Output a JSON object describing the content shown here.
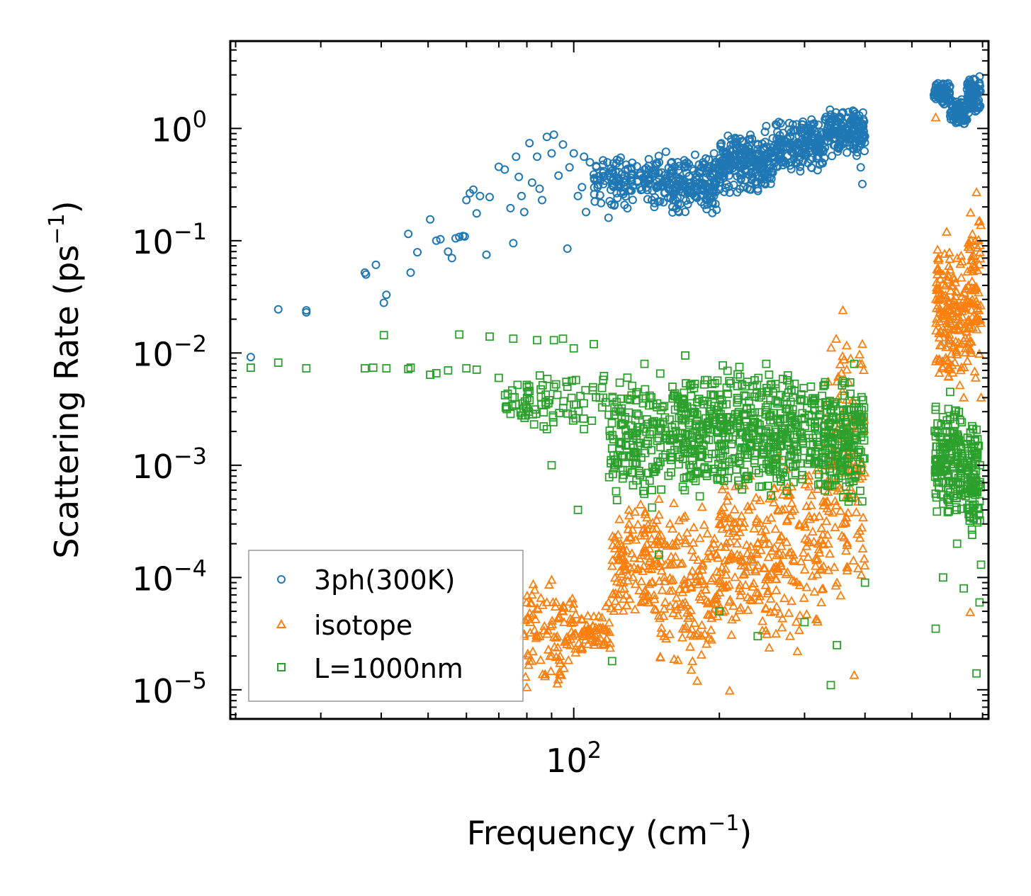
{
  "chart_data": {
    "type": "scatter",
    "xlabel": "Frequency (cm",
    "xlabel_sup": "−1",
    "xlabel_end": ")",
    "ylabel": "Scattering Rate (ps",
    "ylabel_sup": "−1",
    "ylabel_end": ")",
    "xscale": "log",
    "yscale": "log",
    "xlim": [
      19.5,
      720
    ],
    "ylim": [
      5.5e-06,
      6
    ],
    "x_ticks": [
      {
        "value": 100,
        "base": "10",
        "exp": "2"
      }
    ],
    "y_ticks": [
      {
        "value": 1,
        "base": "10",
        "exp": "0"
      },
      {
        "value": 0.1,
        "base": "10",
        "exp": "−1"
      },
      {
        "value": 0.01,
        "base": "10",
        "exp": "−2"
      },
      {
        "value": 0.001,
        "base": "10",
        "exp": "−3"
      },
      {
        "value": 0.0001,
        "base": "10",
        "exp": "−4"
      },
      {
        "value": 1e-05,
        "base": "10",
        "exp": "−5"
      }
    ],
    "legend_position": "lower-left",
    "series": [
      {
        "name": "3ph(300K)",
        "marker": "circle",
        "color": "#1f77b4",
        "points": [
          [
            21.5,
            0.0092
          ],
          [
            24.5,
            0.0245
          ],
          [
            28.0,
            0.024
          ],
          [
            28.0,
            0.023
          ],
          [
            37.0,
            0.052
          ],
          [
            37.2,
            0.05
          ],
          [
            39.0,
            0.061
          ],
          [
            40.5,
            0.028
          ],
          [
            41.0,
            0.033
          ],
          [
            45.5,
            0.115
          ],
          [
            46.0,
            0.052
          ],
          [
            47.5,
            0.079
          ],
          [
            50.5,
            0.155
          ],
          [
            52.0,
            0.1
          ],
          [
            53.0,
            0.103
          ],
          [
            55.0,
            0.08
          ],
          [
            56.0,
            0.07
          ],
          [
            57.0,
            0.105
          ],
          [
            58.0,
            0.108
          ],
          [
            59.0,
            0.11
          ],
          [
            59.5,
            0.109
          ],
          [
            60.0,
            0.23
          ],
          [
            61.0,
            0.265
          ],
          [
            62.0,
            0.285
          ],
          [
            63.0,
            0.175
          ],
          [
            64.0,
            0.25
          ],
          [
            66.0,
            0.075
          ],
          [
            67.0,
            0.245
          ],
          [
            70.0,
            0.455
          ],
          [
            72.0,
            0.43
          ],
          [
            74.0,
            0.195
          ],
          [
            75.0,
            0.095
          ],
          [
            76.0,
            0.56
          ],
          [
            77.0,
            0.37
          ],
          [
            78.0,
            0.25
          ],
          [
            79.0,
            0.18
          ],
          [
            81.0,
            0.74
          ],
          [
            82.0,
            0.33
          ],
          [
            84.0,
            0.56
          ],
          [
            85.0,
            0.29
          ],
          [
            86.0,
            0.23
          ],
          [
            88.0,
            0.84
          ],
          [
            90.0,
            0.6
          ],
          [
            91.0,
            0.88
          ],
          [
            93.0,
            0.38
          ],
          [
            95.0,
            0.72
          ],
          [
            97.0,
            0.085
          ],
          [
            98.0,
            0.45
          ],
          [
            100.0,
            0.6
          ],
          [
            102.0,
            0.25
          ],
          [
            104.0,
            0.3
          ],
          [
            105.0,
            0.56
          ],
          [
            106.0,
            0.18
          ],
          [
            108.0,
            0.5
          ],
          [
            110.0,
            0.39
          ],
          [
            112.0,
            0.3
          ],
          [
            115.0,
            0.52
          ],
          [
            118.0,
            0.16
          ],
          [
            120.0,
            0.42
          ],
          [
            125.0,
            0.55
          ],
          [
            130.0,
            0.28
          ],
          [
            135.0,
            0.46
          ],
          [
            140.0,
            0.35
          ],
          [
            145.0,
            0.23
          ],
          [
            150.0,
            0.4
          ],
          [
            155.0,
            0.33
          ],
          [
            160.0,
            0.2
          ],
          [
            165.0,
            0.18
          ],
          [
            170.0,
            0.45
          ],
          [
            175.0,
            0.3
          ],
          [
            180.0,
            0.38
          ],
          [
            185.0,
            0.5
          ],
          [
            190.0,
            0.42
          ],
          [
            195.0,
            0.6
          ],
          [
            200.0,
            0.35
          ],
          [
            210.0,
            0.65
          ],
          [
            220.0,
            0.45
          ],
          [
            230.0,
            0.8
          ],
          [
            240.0,
            0.6
          ],
          [
            250.0,
            1.05
          ],
          [
            260.0,
            0.7
          ],
          [
            270.0,
            0.5
          ],
          [
            280.0,
            0.85
          ],
          [
            300.0,
            0.65
          ],
          [
            310.0,
            1.2
          ],
          [
            320.0,
            0.8
          ],
          [
            340.0,
            1.05
          ],
          [
            360.0,
            0.95
          ],
          [
            370.0,
            1.4
          ],
          [
            380.0,
            0.65
          ],
          [
            392.0,
            0.45
          ],
          [
            395.0,
            0.32
          ],
          [
            400.0,
            0.85
          ],
          [
            560.0,
            2.1
          ],
          [
            580.0,
            2.5
          ],
          [
            600.0,
            1.8
          ],
          [
            620.0,
            1.3
          ],
          [
            640.0,
            1.1
          ],
          [
            660.0,
            1.5
          ],
          [
            680.0,
            2.3
          ],
          [
            690.0,
            2.9
          ]
        ],
        "clusters": [
          {
            "x": [
              110,
              160
            ],
            "y": [
              0.18,
              0.65
            ],
            "n": 160
          },
          {
            "x": [
              160,
              200
            ],
            "y": [
              0.17,
              0.6
            ],
            "n": 150
          },
          {
            "x": [
              200,
              260
            ],
            "y": [
              0.25,
              1.0
            ],
            "n": 220
          },
          {
            "x": [
              260,
              330
            ],
            "y": [
              0.4,
              1.25
            ],
            "n": 180
          },
          {
            "x": [
              330,
              400
            ],
            "y": [
              0.55,
              1.5
            ],
            "n": 170
          },
          {
            "x": [
              555,
              600
            ],
            "y": [
              1.6,
              2.6
            ],
            "n": 80
          },
          {
            "x": [
              600,
              650
            ],
            "y": [
              1.05,
              1.9
            ],
            "n": 80
          },
          {
            "x": [
              650,
              695
            ],
            "y": [
              1.3,
              2.9
            ],
            "n": 80
          }
        ]
      },
      {
        "name": "isotope",
        "marker": "triangle",
        "color": "#ff7f0e",
        "points": [
          [
            80,
            1.05e-05
          ],
          [
            82,
            1.8e-05
          ],
          [
            85,
            3e-05
          ],
          [
            88,
            6e-05
          ],
          [
            90,
            9.5e-05
          ],
          [
            95,
            5e-05
          ],
          [
            100,
            4e-05
          ],
          [
            105,
            3e-05
          ],
          [
            110,
            4.5e-05
          ],
          [
            115,
            2.5e-05
          ],
          [
            118,
            6e-05
          ],
          [
            125,
            0.0002
          ],
          [
            130,
            0.0004
          ],
          [
            140,
            0.00025
          ],
          [
            145,
            9e-05
          ],
          [
            150,
            0.0005
          ],
          [
            155,
            0.00013
          ],
          [
            160,
            0.0002
          ],
          [
            170,
            6e-05
          ],
          [
            175,
            1.5e-05
          ],
          [
            180,
            1.2e-05
          ],
          [
            200,
            0.0003
          ],
          [
            210,
            9.8e-06
          ],
          [
            220,
            8e-05
          ],
          [
            230,
            0.0004
          ],
          [
            240,
            0.0002
          ],
          [
            260,
            5e-05
          ],
          [
            280,
            3e-05
          ],
          [
            290,
            2.2e-05
          ],
          [
            300,
            0.0003
          ],
          [
            320,
            0.0002
          ],
          [
            360,
            0.024
          ],
          [
            370,
            0.0055
          ],
          [
            380,
            1.35e-05
          ],
          [
            390,
            0.008
          ],
          [
            395,
            0.012
          ],
          [
            560,
            1.25
          ],
          [
            570,
            0.03
          ],
          [
            580,
            0.05
          ],
          [
            590,
            0.12
          ],
          [
            600,
            0.02
          ],
          [
            620,
            0.07
          ],
          [
            640,
            0.004
          ],
          [
            660,
            4.9e-05
          ],
          [
            680,
            0.27
          ],
          [
            690,
            0.15
          ],
          [
            695,
            0.004
          ]
        ],
        "clusters": [
          {
            "x": [
              78,
              100
            ],
            "y": [
              1e-05,
              0.0001
            ],
            "n": 90
          },
          {
            "x": [
              100,
              120
            ],
            "y": [
              1.8e-05,
              6e-05
            ],
            "n": 60
          },
          {
            "x": [
              120,
              150
            ],
            "y": [
              4e-05,
              0.0005
            ],
            "n": 130
          },
          {
            "x": [
              150,
              200
            ],
            "y": [
              1.3e-05,
              0.0006
            ],
            "n": 150
          },
          {
            "x": [
              200,
              260
            ],
            "y": [
              2e-05,
              0.001
            ],
            "n": 150
          },
          {
            "x": [
              260,
              330
            ],
            "y": [
              2e-05,
              0.0015
            ],
            "n": 120
          },
          {
            "x": [
              330,
              400
            ],
            "y": [
              5e-05,
              0.015
            ],
            "n": 140
          },
          {
            "x": [
              560,
              600
            ],
            "y": [
              0.005,
              0.12
            ],
            "n": 90
          },
          {
            "x": [
              600,
              650
            ],
            "y": [
              0.005,
              0.08
            ],
            "n": 70
          },
          {
            "x": [
              650,
              695
            ],
            "y": [
              0.005,
              0.25
            ],
            "n": 80
          }
        ]
      },
      {
        "name": "L=1000nm",
        "marker": "square",
        "color": "#2ca02c",
        "points": [
          [
            21.5,
            0.0074
          ],
          [
            24.5,
            0.0082
          ],
          [
            28.0,
            0.0073
          ],
          [
            37.0,
            0.0073
          ],
          [
            38.5,
            0.0074
          ],
          [
            40.5,
            0.0144
          ],
          [
            41.0,
            0.0073
          ],
          [
            45.5,
            0.0072
          ],
          [
            46.0,
            0.0074
          ],
          [
            50.5,
            0.0064
          ],
          [
            52.0,
            0.0066
          ],
          [
            55.0,
            0.007
          ],
          [
            58.0,
            0.0146
          ],
          [
            60.0,
            0.0073
          ],
          [
            63.0,
            0.0071
          ],
          [
            67.0,
            0.014
          ],
          [
            70.0,
            0.006
          ],
          [
            75.0,
            0.0134
          ],
          [
            80.0,
            0.0052
          ],
          [
            84.0,
            0.013
          ],
          [
            88.0,
            0.0021
          ],
          [
            90.0,
            0.001
          ],
          [
            91.0,
            0.013
          ],
          [
            95.0,
            0.0134
          ],
          [
            97.0,
            0.005
          ],
          [
            100.0,
            0.011
          ],
          [
            102.0,
            0.0004
          ],
          [
            105.0,
            0.0021
          ],
          [
            110.0,
            0.012
          ],
          [
            115.0,
            0.004
          ],
          [
            120.0,
            1.8e-05
          ],
          [
            125.0,
            0.003
          ],
          [
            140.0,
            0.008
          ],
          [
            150.0,
            0.00016
          ],
          [
            160.0,
            0.005
          ],
          [
            170.0,
            0.0095
          ],
          [
            180.0,
            0.0025
          ],
          [
            200.0,
            5e-05
          ],
          [
            220.0,
            0.0075
          ],
          [
            240.0,
            3e-05
          ],
          [
            250.0,
            0.008
          ],
          [
            300.0,
            4e-05
          ],
          [
            340.0,
            1.1e-05
          ],
          [
            350.0,
            2.5e-05
          ],
          [
            380.0,
            0.008
          ],
          [
            400.0,
            9e-05
          ],
          [
            560.0,
            3.5e-05
          ],
          [
            580.0,
            0.0001
          ],
          [
            600.0,
            0.0045
          ],
          [
            620.0,
            0.0002
          ],
          [
            640.0,
            8e-05
          ],
          [
            680.0,
            1.4e-05
          ],
          [
            690.0,
            6e-05
          ],
          [
            695.0,
            0.00013
          ]
        ],
        "clusters": [
          {
            "x": [
              72,
              118
            ],
            "y": [
              0.002,
              0.007
            ],
            "n": 80
          },
          {
            "x": [
              118,
              160
            ],
            "y": [
              0.0004,
              0.007
            ],
            "n": 170
          },
          {
            "x": [
              160,
              200
            ],
            "y": [
              0.0005,
              0.007
            ],
            "n": 170
          },
          {
            "x": [
              200,
              260
            ],
            "y": [
              0.0005,
              0.008
            ],
            "n": 210
          },
          {
            "x": [
              260,
              330
            ],
            "y": [
              0.0005,
              0.007
            ],
            "n": 170
          },
          {
            "x": [
              330,
              400
            ],
            "y": [
              0.0004,
              0.007
            ],
            "n": 170
          },
          {
            "x": [
              555,
              600
            ],
            "y": [
              0.0003,
              0.004
            ],
            "n": 90
          },
          {
            "x": [
              600,
              650
            ],
            "y": [
              0.0003,
              0.004
            ],
            "n": 80
          },
          {
            "x": [
              650,
              695
            ],
            "y": [
              0.0002,
              0.003
            ],
            "n": 90
          }
        ]
      }
    ]
  }
}
